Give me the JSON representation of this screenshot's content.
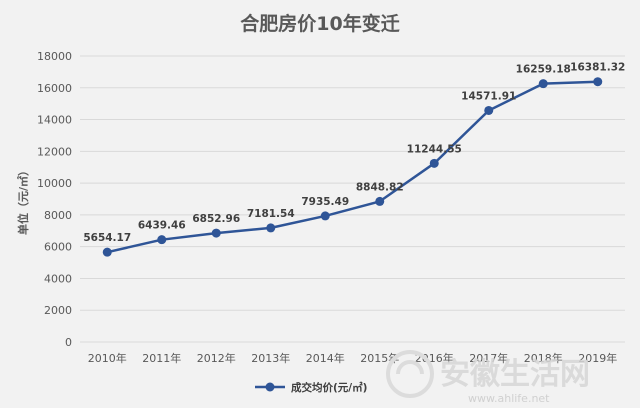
{
  "chart_data": {
    "type": "line",
    "title": "合肥房价10年变迁",
    "ylabel": "单位（元/㎡）",
    "xlabel": "",
    "categories": [
      "2010年",
      "2011年",
      "2012年",
      "2013年",
      "2014年",
      "2015年",
      "2016年",
      "2017年",
      "2018年",
      "2019年"
    ],
    "series": [
      {
        "name": "成交均价(元/㎡)",
        "values": [
          5654.17,
          6439.46,
          6852.96,
          7181.54,
          7935.49,
          8848.82,
          11244.55,
          14571.91,
          16259.18,
          16381.32
        ],
        "labels": [
          "5654.17",
          "6439.46",
          "6852.96",
          "7181.54",
          "7935.49",
          "8848.82",
          "11244.55",
          "14571.91",
          "16259.18",
          "16381.32"
        ],
        "color": "#2f5597"
      }
    ],
    "ylim": [
      0,
      18000
    ],
    "yticks": [
      0,
      2000,
      4000,
      6000,
      8000,
      10000,
      12000,
      14000,
      16000,
      18000
    ],
    "grid": true,
    "legend": "bottom-center"
  },
  "watermark": {
    "text": "安徽生活网",
    "url": "www.ahlife.net"
  },
  "colors": {
    "background": "#f2f2f2",
    "series": "#2f5597",
    "grid": "#d9d9d9"
  }
}
